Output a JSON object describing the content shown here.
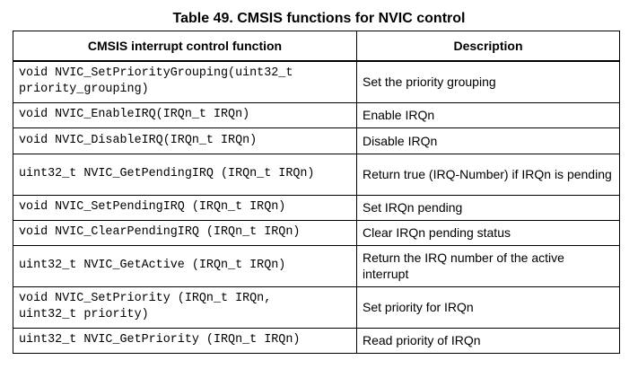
{
  "caption": "Table 49. CMSIS functions for NVIC control",
  "table": {
    "headers": [
      "CMSIS interrupt control function",
      "Description"
    ],
    "rows": [
      {
        "function": "void NVIC_SetPriorityGrouping(uint32_t\npriority_grouping)",
        "description": "Set the priority grouping"
      },
      {
        "function": "void NVIC_EnableIRQ(IRQn_t IRQn)",
        "description": "Enable IRQn"
      },
      {
        "function": "void NVIC_DisableIRQ(IRQn_t IRQn)",
        "description": "Disable IRQn"
      },
      {
        "function": "uint32_t NVIC_GetPendingIRQ (IRQn_t IRQn)",
        "description": "Return true (IRQ-Number) if IRQn is pending"
      },
      {
        "function": "void NVIC_SetPendingIRQ (IRQn_t IRQn)",
        "description": "Set IRQn pending"
      },
      {
        "function": "void NVIC_ClearPendingIRQ (IRQn_t IRQn)",
        "description": "Clear IRQn pending status"
      },
      {
        "function": "uint32_t NVIC_GetActive (IRQn_t IRQn)",
        "description": "Return the IRQ number of the active interrupt"
      },
      {
        "function": "void NVIC_SetPriority (IRQn_t IRQn,\nuint32_t priority)",
        "description": "Set priority for IRQn"
      },
      {
        "function": "uint32_t NVIC_GetPriority (IRQn_t IRQn)",
        "description": "Read priority of IRQn"
      }
    ]
  }
}
